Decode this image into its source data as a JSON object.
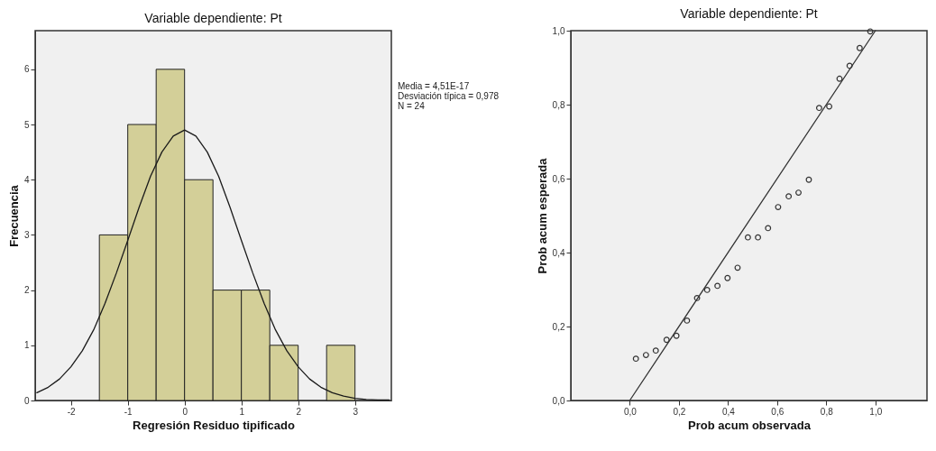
{
  "chart_data": [
    {
      "type": "histogram",
      "title": "Variable dependiente: Pt",
      "xlabel": "Regresión Residuo tipificado",
      "ylabel": "Frecuencia",
      "bins": [
        -1.5,
        -1,
        -0.5,
        0,
        0.5,
        1,
        1.5,
        2,
        2.5,
        3
      ],
      "series": [
        {
          "color": "#d3cf98",
          "values": [
            3,
            5,
            6,
            4,
            2,
            2,
            1,
            0,
            1
          ]
        },
        {
          "type": "line",
          "color": "#1a1a1a",
          "x": [
            -2.6,
            -2.4,
            -2.2,
            -2,
            -1.8,
            -1.6,
            -1.4,
            -1.2,
            -1,
            -0.8,
            -0.6,
            -0.4,
            -0.2,
            0,
            0.2,
            0.4,
            0.6,
            0.8,
            1,
            1.2,
            1.4,
            1.6,
            1.8,
            2,
            2.2,
            2.4,
            2.6,
            2.8,
            3,
            3.2,
            3.4,
            3.6
          ],
          "values": [
            0.14,
            0.24,
            0.39,
            0.61,
            0.9,
            1.28,
            1.76,
            2.31,
            2.9,
            3.5,
            4.06,
            4.5,
            4.79,
            4.9,
            4.79,
            4.5,
            4.06,
            3.5,
            2.9,
            2.31,
            1.76,
            1.28,
            0.9,
            0.61,
            0.39,
            0.24,
            0.14,
            0.08,
            0.04,
            0.02,
            0.01,
            0.01
          ]
        }
      ],
      "xlim": [
        -2.63,
        3.64
      ],
      "xticks": [
        -2,
        -1,
        0,
        1,
        2,
        3
      ],
      "ylim": [
        0,
        6.7
      ],
      "yticks": [
        0,
        1,
        2,
        3,
        4,
        5,
        6
      ],
      "grid": false,
      "annotations": [
        "Media = 4,51E-17",
        "Desviación típica = 0,978",
        "N = 24"
      ]
    },
    {
      "type": "scatter",
      "title": "Variable dependiente: Pt",
      "xlabel": "Prob acum observada",
      "ylabel": "Prob acum esperada",
      "grid": false,
      "series": [
        {
          "marker": "circle",
          "color": "#333333",
          "x": [
            0.025,
            0.066,
            0.106,
            0.15,
            0.19,
            0.233,
            0.274,
            0.315,
            0.357,
            0.398,
            0.439,
            0.481,
            0.522,
            0.563,
            0.604,
            0.647,
            0.687,
            0.729,
            0.771,
            0.812,
            0.854,
            0.895,
            0.936,
            0.979
          ],
          "values": [
            0.113,
            0.123,
            0.135,
            0.164,
            0.175,
            0.216,
            0.277,
            0.299,
            0.31,
            0.331,
            0.359,
            0.441,
            0.441,
            0.466,
            0.523,
            0.552,
            0.562,
            0.597,
            0.791,
            0.795,
            0.87,
            0.905,
            0.953,
            0.998
          ]
        },
        {
          "type": "line",
          "color": "#333333",
          "x": [
            0,
            1
          ],
          "values": [
            0,
            1
          ]
        }
      ],
      "xlim": [
        -0.24,
        1.21
      ],
      "xticks": [
        {
          "value": 0,
          "label": "0,0"
        },
        {
          "value": 0.2,
          "label": "0,2"
        },
        {
          "value": 0.4,
          "label": "0,4"
        },
        {
          "value": 0.6,
          "label": "0,6"
        },
        {
          "value": 0.8,
          "label": "0,8"
        },
        {
          "value": 1,
          "label": "1,0"
        }
      ],
      "ylim": [
        0,
        1
      ],
      "yticks": [
        {
          "value": 0,
          "label": "0,0"
        },
        {
          "value": 0.2,
          "label": "0,2"
        },
        {
          "value": 0.4,
          "label": "0,4"
        },
        {
          "value": 0.6,
          "label": "0,6"
        },
        {
          "value": 0.8,
          "label": "0,8"
        },
        {
          "value": 1,
          "label": "1,0"
        }
      ]
    }
  ]
}
